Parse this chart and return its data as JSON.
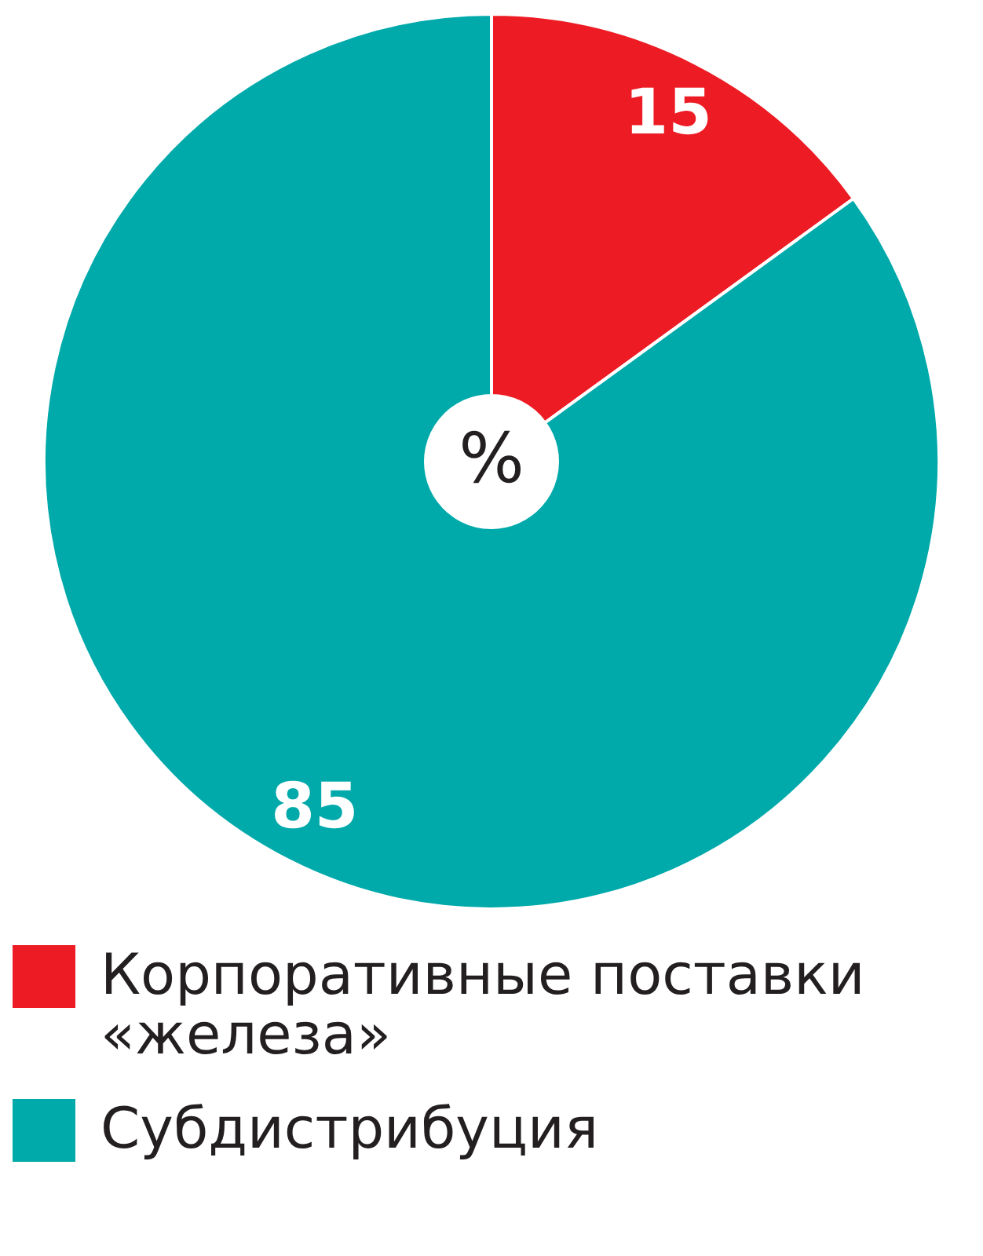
{
  "chart_data": {
    "type": "donut",
    "categories": [
      "Корпоративные поставки «железа»",
      "Субдистрибуция"
    ],
    "values": [
      15,
      85
    ],
    "colors": [
      "#ed1c24",
      "#00a9aa"
    ],
    "data_labels": true,
    "annotations": [
      "%"
    ],
    "legend": "bottom"
  }
}
